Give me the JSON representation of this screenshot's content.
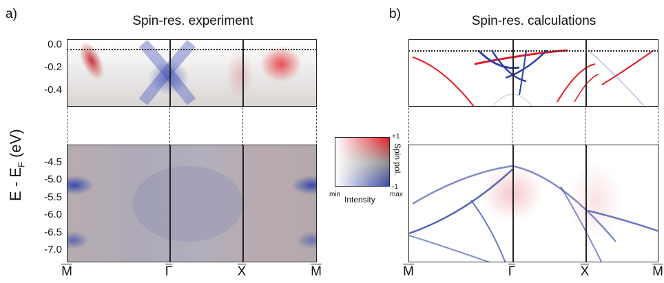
{
  "panel_a": {
    "letter": "a)",
    "title": "Spin-res. experiment"
  },
  "panel_b": {
    "letter": "b)",
    "title": "Spin-res. calculations"
  },
  "ylabel_main": "E - E",
  "ylabel_sub": "F",
  "ylabel_unit": " (eV)",
  "colorbar": {
    "plus": "+1",
    "minus": "-1",
    "spin_label": "Spin pol.",
    "min": "min",
    "max": "max",
    "intensity": "Intensity",
    "colors": {
      "positive": "#e8141a",
      "negative": "#2a3fa8",
      "neutral": "#ffffff"
    }
  },
  "chart_data": [
    {
      "type": "heatmap",
      "title": "Spin-res. experiment",
      "xlabel": "",
      "ylabel": "E - EF (eV)",
      "x_ticks": [
        "M",
        "Γ",
        "X",
        "M"
      ],
      "y_ticks_top": [
        "0.0",
        "-0.2",
        "-0.4"
      ],
      "y_ticks_bottom": [
        "-4.5",
        "-5.0",
        "-5.5",
        "-6.0",
        "-6.5",
        "-7.0"
      ],
      "ylim_top": [
        -0.55,
        0.05
      ],
      "ylim_bottom": [
        -7.35,
        -4.0
      ],
      "features": [
        {
          "label": "red band",
          "x": "M-Γ",
          "E": -0.15
        },
        {
          "label": "blue X-shape",
          "x": "Γ",
          "E": -0.2
        },
        {
          "label": "red band",
          "x": "X-M",
          "E": -0.15
        },
        {
          "label": "blue band",
          "x": "M",
          "E": -5.0
        },
        {
          "label": "blue band",
          "x": "M",
          "E": -6.7
        }
      ]
    },
    {
      "type": "heatmap",
      "title": "Spin-res. calculations",
      "xlabel": "",
      "ylabel": "E - EF (eV)",
      "x_ticks": [
        "M",
        "Γ",
        "X",
        "M"
      ],
      "ylim_top": [
        -0.55,
        0.05
      ],
      "ylim_bottom": [
        -7.35,
        -4.0
      ],
      "features": [
        {
          "label": "red dispersive band",
          "x": "M-Γ",
          "E": -0.3
        },
        {
          "label": "blue bands",
          "x": "Γ",
          "E": -0.1
        },
        {
          "label": "blue band maximum",
          "x": "Γ",
          "E": -4.6
        },
        {
          "label": "blue band",
          "x": "M",
          "E": -6.7
        }
      ]
    }
  ]
}
